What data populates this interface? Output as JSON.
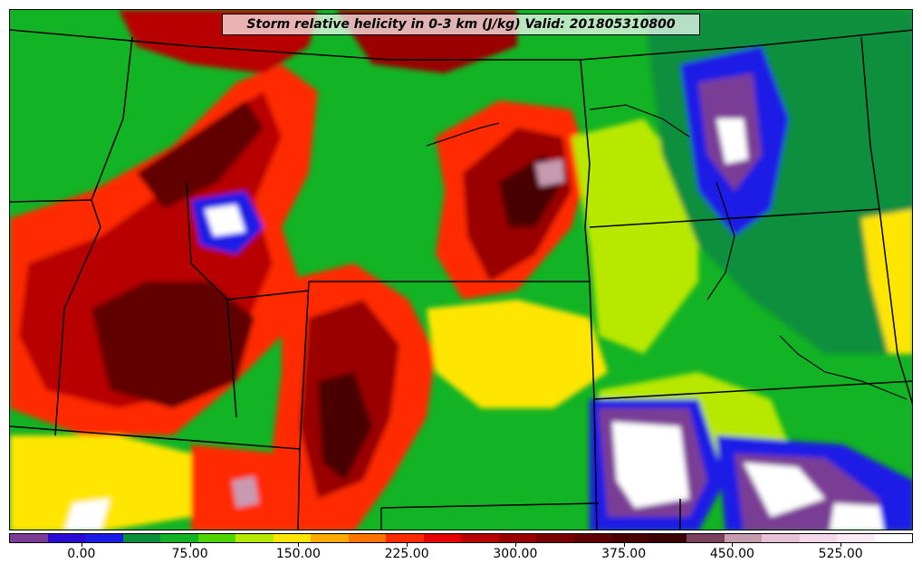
{
  "title": "Storm relative helicity in 0-3 km (J/kg) Valid: 201805310800",
  "colorbar": {
    "colors": [
      "#7a3c96",
      "#2a0bd6",
      "#1a1ae6",
      "#0b8f3c",
      "#12b324",
      "#4fd400",
      "#b8e800",
      "#ffe600",
      "#ffaa00",
      "#ff7300",
      "#ff2a00",
      "#e60000",
      "#b80000",
      "#9a0000",
      "#7a0000",
      "#600000",
      "#4a0000",
      "#3a0404",
      "#7a4060",
      "#c89ab0",
      "#e8c0d8",
      "#f3d6e8",
      "#fbe9f3",
      "#ffffff"
    ],
    "tick_labels": [
      "0.00",
      "75.00",
      "150.00",
      "225.00",
      "300.00",
      "375.00",
      "450.00",
      "525.00"
    ],
    "tick_values": [
      0,
      75,
      150,
      225,
      300,
      375,
      450,
      525
    ],
    "range": [
      -50,
      575
    ]
  },
  "map": {
    "field": "Storm relative helicity in 0-3 km",
    "units": "J/kg",
    "valid": "201805310800",
    "region_colors": {
      "background": "#12b324",
      "hot": "#b80000",
      "very_hot": "#4a0000",
      "warm": "#ff2a00",
      "yellow": "#ffe600",
      "lime": "#b8e800",
      "green": "#0b8f3c",
      "blue": "#1a1ae6",
      "purple": "#7a3c96",
      "white": "#ffffff"
    }
  }
}
